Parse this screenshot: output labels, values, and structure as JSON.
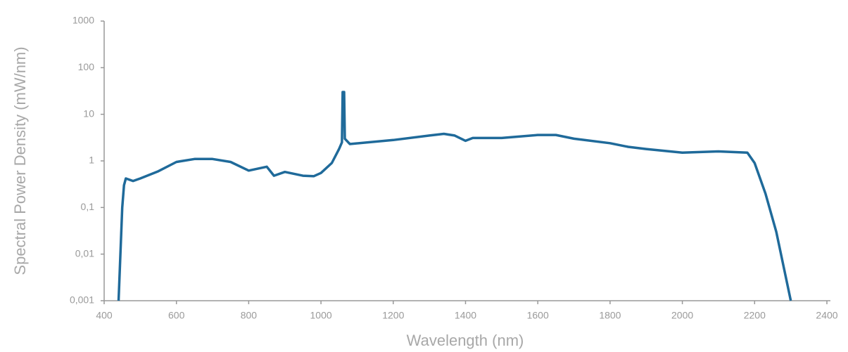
{
  "chart_data": {
    "type": "line",
    "x_label": "Wavelength (nm)",
    "y_label": "Spectral Power Density (mW/nm)",
    "log_y": true,
    "grid": false,
    "xlim": [
      400,
      2400
    ],
    "xticks": [
      400,
      600,
      800,
      1000,
      1200,
      1400,
      1600,
      1800,
      2000,
      2200,
      2400
    ],
    "ylim": [
      0.001,
      1000
    ],
    "yticks": [
      {
        "value": 0.001,
        "label": "0,001"
      },
      {
        "value": 0.01,
        "label": "0,01"
      },
      {
        "value": 0.1,
        "label": "0,1"
      },
      1,
      10,
      100,
      1000
    ],
    "series": [
      {
        "color": "#1f6a9a",
        "x": [
          440,
          445,
          450,
          455,
          460,
          480,
          500,
          550,
          600,
          650,
          700,
          750,
          800,
          850,
          870,
          900,
          950,
          980,
          1000,
          1030,
          1050,
          1058,
          1060,
          1064,
          1066,
          1080,
          1200,
          1300,
          1340,
          1370,
          1400,
          1420,
          1500,
          1600,
          1650,
          1700,
          1800,
          1850,
          1900,
          2000,
          2100,
          2180,
          2200,
          2230,
          2260,
          2300
        ],
        "values": [
          0.001,
          0.01,
          0.1,
          0.3,
          0.42,
          0.37,
          0.42,
          0.6,
          0.95,
          1.1,
          1.1,
          0.95,
          0.62,
          0.75,
          0.48,
          0.58,
          0.48,
          0.47,
          0.55,
          0.9,
          1.8,
          2.5,
          30,
          30,
          3,
          2.3,
          2.8,
          3.5,
          3.8,
          3.5,
          2.7,
          3.1,
          3.1,
          3.6,
          3.6,
          3.0,
          2.4,
          2.0,
          1.8,
          1.5,
          1.6,
          1.5,
          0.9,
          0.2,
          0.03,
          0.001
        ]
      }
    ]
  }
}
